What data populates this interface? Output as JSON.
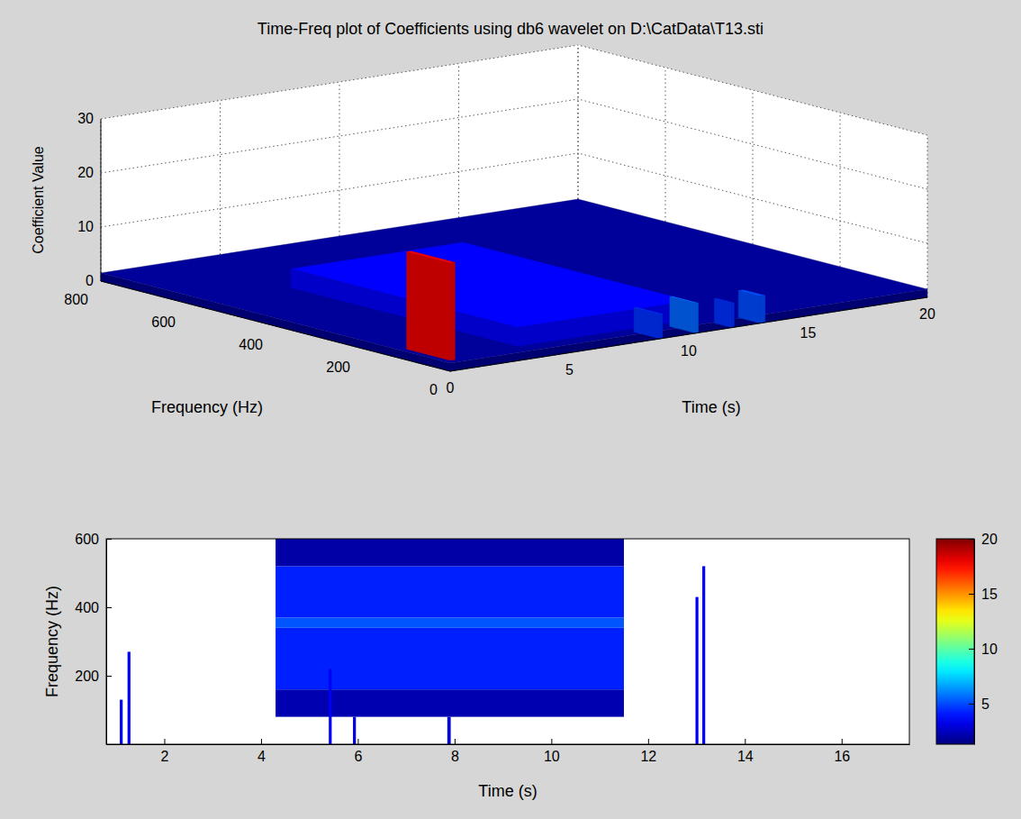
{
  "chart_data": [
    {
      "type": "surface",
      "title": "Time-Freq plot of Coefficients using db6 wavelet on D:\\CatData\\T13.sti",
      "x_label": "Time (s)",
      "y_label": "Frequency (Hz)",
      "z_label": "Coefficient Value",
      "xlim": [
        0,
        20
      ],
      "xticks": [
        0,
        5,
        10,
        15,
        20
      ],
      "ylim": [
        0,
        800
      ],
      "yticks": [
        0,
        200,
        400,
        600,
        800
      ],
      "zlim": [
        0,
        30
      ],
      "zticks": [
        0,
        10,
        20,
        30
      ],
      "grid": true,
      "cells": [
        {
          "time": [
            0,
            20
          ],
          "frequency": [
            0,
            800
          ],
          "value": 1.5
        },
        {
          "time": [
            4.3,
            11.5
          ],
          "frequency": [
            80,
            600
          ],
          "value": 3.5
        },
        {
          "time": [
            1.1,
            1.3
          ],
          "frequency": [
            60,
            160
          ],
          "value": 18
        },
        {
          "time": [
            8.8,
            8.9
          ],
          "frequency": [
            0,
            60
          ],
          "value": 4.5
        },
        {
          "time": [
            10.3,
            10.4
          ],
          "frequency": [
            0,
            60
          ],
          "value": 5.5
        },
        {
          "time": [
            11.8,
            11.9
          ],
          "frequency": [
            0,
            40
          ],
          "value": 4.5
        },
        {
          "time": [
            13.0,
            13.2
          ],
          "frequency": [
            0,
            50
          ],
          "value": 5
        }
      ]
    },
    {
      "type": "heatmap",
      "x_label": "Time (s)",
      "y_label": "Frequency (Hz)",
      "xlim": [
        0.8,
        17.4
      ],
      "xticks": [
        2,
        4,
        6,
        8,
        10,
        12,
        14,
        16
      ],
      "ylim": [
        0,
        600
      ],
      "yticks": [
        200,
        400,
        600
      ],
      "grid": false,
      "cells": [
        {
          "time": [
            4.3,
            11.5
          ],
          "frequency": [
            80,
            160
          ],
          "value": 2.2
        },
        {
          "time": [
            4.3,
            11.5
          ],
          "frequency": [
            160,
            340
          ],
          "value": 4.2
        },
        {
          "time": [
            4.3,
            11.5
          ],
          "frequency": [
            340,
            370
          ],
          "value": 5.2
        },
        {
          "time": [
            4.3,
            11.5
          ],
          "frequency": [
            370,
            520
          ],
          "value": 4.2
        },
        {
          "time": [
            4.3,
            11.5
          ],
          "frequency": [
            520,
            600
          ],
          "value": 2.0
        },
        {
          "time": [
            1.08,
            1.14
          ],
          "frequency": [
            0,
            130
          ],
          "value": 3.5
        },
        {
          "time": [
            1.24,
            1.3
          ],
          "frequency": [
            0,
            270
          ],
          "value": 3.5
        },
        {
          "time": [
            5.4,
            5.46
          ],
          "frequency": [
            0,
            220
          ],
          "value": 3.5
        },
        {
          "time": [
            5.9,
            5.96
          ],
          "frequency": [
            0,
            80
          ],
          "value": 3
        },
        {
          "time": [
            7.85,
            7.92
          ],
          "frequency": [
            0,
            80
          ],
          "value": 3
        },
        {
          "time": [
            12.98,
            13.04
          ],
          "frequency": [
            0,
            430
          ],
          "value": 3.5
        },
        {
          "time": [
            13.12,
            13.18
          ],
          "frequency": [
            0,
            520
          ],
          "value": 3.5
        }
      ],
      "colorbar": {
        "range": [
          1.3,
          20
        ],
        "ticks": [
          5,
          10,
          15,
          20
        ]
      }
    }
  ]
}
